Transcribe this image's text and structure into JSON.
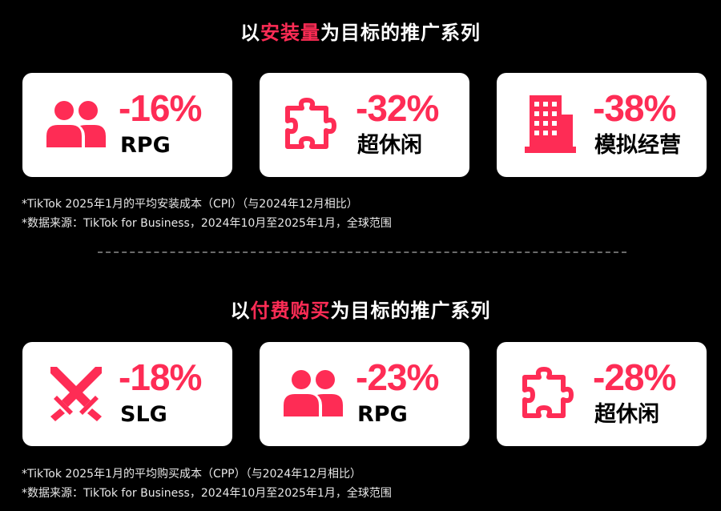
{
  "colors": {
    "accent": "#fe2c55",
    "card_bg": "#ffffff",
    "page_bg": "#000000"
  },
  "section1": {
    "title_prefix": "以",
    "title_highlight": "安装量",
    "title_suffix": "为目标的推广系列",
    "cards": [
      {
        "icon": "people-icon",
        "value": "-16%",
        "label": "RPG"
      },
      {
        "icon": "puzzle-icon",
        "value": "-32%",
        "label": "超休闲"
      },
      {
        "icon": "building-icon",
        "value": "-38%",
        "label": "模拟经营"
      }
    ],
    "note_1": "*TikTok 2025年1月的平均安装成本（CPI）（与2024年12月相比）",
    "note_2": "*数据来源：TikTok for Business，2024年10月至2025年1月，全球范围"
  },
  "section2": {
    "title_prefix": "以",
    "title_highlight": "付费购买",
    "title_suffix": "为目标的推广系列",
    "cards": [
      {
        "icon": "crossed-swords-icon",
        "value": "-18%",
        "label": "SLG"
      },
      {
        "icon": "people-icon",
        "value": "-23%",
        "label": "RPG"
      },
      {
        "icon": "puzzle-icon",
        "value": "-28%",
        "label": "超休闲"
      }
    ],
    "note_1": "*TikTok 2025年1月的平均购买成本（CPP）（与2024年12月相比）",
    "note_2": "*数据来源：TikTok for Business，2024年10月至2025年1月，全球范围"
  }
}
